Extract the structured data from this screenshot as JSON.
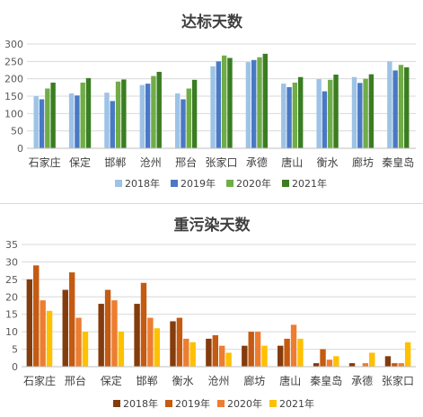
{
  "chart_data": [
    {
      "type": "bar",
      "title": "达标天数",
      "xlabel": "",
      "ylabel": "",
      "ylim": [
        0,
        300
      ],
      "yticks": [
        0,
        50,
        100,
        150,
        200,
        250,
        300
      ],
      "grid": true,
      "legend_position": "bottom",
      "categories": [
        "石家庄",
        "保定",
        "邯郸",
        "沧州",
        "邢台",
        "张家口",
        "承德",
        "唐山",
        "衡水",
        "廊坊",
        "秦皇岛"
      ],
      "series": [
        {
          "name": "2018年",
          "color": "#9dc3e6",
          "values": [
            150,
            158,
            160,
            182,
            158,
            236,
            248,
            186,
            199,
            205,
            250
          ]
        },
        {
          "name": "2019年",
          "color": "#4a79c4",
          "values": [
            141,
            152,
            136,
            186,
            141,
            250,
            254,
            176,
            164,
            188,
            224
          ]
        },
        {
          "name": "2020年",
          "color": "#70ad47",
          "values": [
            172,
            189,
            192,
            208,
            172,
            267,
            262,
            189,
            197,
            200,
            240
          ]
        },
        {
          "name": "2021年",
          "color": "#3a7d22",
          "values": [
            189,
            202,
            198,
            220,
            197,
            260,
            272,
            205,
            212,
            213,
            233
          ]
        }
      ]
    },
    {
      "type": "bar",
      "title": "重污染天数",
      "xlabel": "",
      "ylabel": "",
      "ylim": [
        0,
        35
      ],
      "yticks": [
        0,
        5,
        10,
        15,
        20,
        25,
        30,
        35
      ],
      "grid": true,
      "legend_position": "bottom",
      "categories": [
        "石家庄",
        "邢台",
        "保定",
        "邯郸",
        "衡水",
        "沧州",
        "廊坊",
        "唐山",
        "秦皇岛",
        "承德",
        "张家口"
      ],
      "series": [
        {
          "name": "2018年",
          "color": "#843c0c",
          "values": [
            25,
            22,
            18,
            18,
            13,
            8,
            6,
            6,
            1,
            1,
            3
          ]
        },
        {
          "name": "2019年",
          "color": "#c55a11",
          "values": [
            29,
            27,
            22,
            24,
            14,
            9,
            10,
            8,
            5,
            0,
            1
          ]
        },
        {
          "name": "2020年",
          "color": "#ed7d31",
          "values": [
            19,
            14,
            19,
            14,
            8,
            6,
            10,
            12,
            2,
            1,
            1
          ]
        },
        {
          "name": "2021年",
          "color": "#ffc000",
          "values": [
            16,
            10,
            10,
            11,
            7,
            4,
            6,
            8,
            3,
            4,
            7
          ]
        }
      ]
    }
  ]
}
